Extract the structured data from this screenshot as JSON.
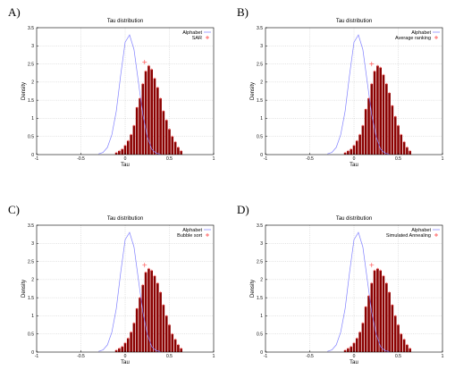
{
  "chart_data": [
    {
      "panel": "A)",
      "type": "bar",
      "title": "Tau distribution",
      "xlabel": "Tau",
      "ylabel": "Density",
      "xlim": [
        -1,
        1
      ],
      "ylim": [
        0,
        3.5
      ],
      "xticks": [
        "-1",
        "-0.5",
        "0",
        "0.5",
        "1"
      ],
      "yticks": [
        "0",
        "0.5",
        "1",
        "1.5",
        "2",
        "2.5",
        "3",
        "3.5"
      ],
      "grid": true,
      "legend_position": "top-right",
      "legend": [
        "Alphabet",
        "SAR"
      ],
      "colors": {
        "reference_line": "#8080ff",
        "bars": "#8b0000",
        "points": "#ff4040"
      },
      "reference_series": {
        "name": "Alphabet",
        "x": [
          -0.3,
          -0.25,
          -0.2,
          -0.15,
          -0.1,
          -0.05,
          0.0,
          0.05,
          0.1,
          0.15,
          0.2,
          0.25,
          0.3,
          0.35,
          0.4
        ],
        "y": [
          0.02,
          0.06,
          0.2,
          0.55,
          1.2,
          2.2,
          3.1,
          3.3,
          2.9,
          2.0,
          1.1,
          0.5,
          0.15,
          0.04,
          0.01
        ]
      },
      "bar_series": {
        "name": "SAR",
        "x": [
          -0.1,
          -0.067,
          -0.033,
          0.0,
          0.033,
          0.067,
          0.1,
          0.133,
          0.167,
          0.2,
          0.233,
          0.267,
          0.3,
          0.333,
          0.367,
          0.4,
          0.433,
          0.467,
          0.5,
          0.533,
          0.567,
          0.6,
          0.633
        ],
        "y": [
          0.05,
          0.1,
          0.15,
          0.25,
          0.38,
          0.55,
          0.8,
          1.3,
          1.55,
          1.95,
          2.3,
          2.45,
          2.35,
          2.1,
          1.85,
          1.55,
          1.2,
          0.95,
          0.7,
          0.5,
          0.35,
          0.2,
          0.1
        ]
      },
      "marker": {
        "x": 0.22,
        "y": 2.55
      }
    },
    {
      "panel": "B)",
      "type": "bar",
      "title": "Tau distribution",
      "xlabel": "Tau",
      "ylabel": "Density",
      "xlim": [
        -1,
        1
      ],
      "ylim": [
        0,
        3.5
      ],
      "xticks": [
        "-1",
        "-0.5",
        "0",
        "0.5",
        "1"
      ],
      "yticks": [
        "0",
        "0.5",
        "1",
        "1.5",
        "2",
        "2.5",
        "3",
        "3.5"
      ],
      "grid": true,
      "legend_position": "top-right",
      "legend": [
        "Alphabet",
        "Average ranking"
      ],
      "colors": {
        "reference_line": "#8080ff",
        "bars": "#8b0000",
        "points": "#ff4040"
      },
      "reference_series": {
        "name": "Alphabet",
        "x": [
          -0.3,
          -0.25,
          -0.2,
          -0.15,
          -0.1,
          -0.05,
          0.0,
          0.05,
          0.1,
          0.15,
          0.2,
          0.25,
          0.3,
          0.35,
          0.4
        ],
        "y": [
          0.02,
          0.06,
          0.2,
          0.55,
          1.2,
          2.2,
          3.1,
          3.3,
          2.9,
          2.0,
          1.1,
          0.5,
          0.15,
          0.04,
          0.01
        ]
      },
      "bar_series": {
        "name": "Average ranking",
        "x": [
          -0.1,
          -0.067,
          -0.033,
          0.0,
          0.033,
          0.067,
          0.1,
          0.133,
          0.167,
          0.2,
          0.233,
          0.267,
          0.3,
          0.333,
          0.367,
          0.4,
          0.433,
          0.467,
          0.5,
          0.533,
          0.567,
          0.6,
          0.633
        ],
        "y": [
          0.05,
          0.1,
          0.15,
          0.25,
          0.38,
          0.55,
          0.8,
          1.25,
          1.55,
          1.95,
          2.3,
          2.45,
          2.4,
          2.2,
          1.95,
          1.7,
          1.35,
          1.05,
          0.8,
          0.55,
          0.35,
          0.2,
          0.1
        ]
      },
      "marker": {
        "x": 0.2,
        "y": 2.5
      }
    },
    {
      "panel": "C)",
      "type": "bar",
      "title": "Tau distribution",
      "xlabel": "Tau",
      "ylabel": "Density",
      "xlim": [
        -1,
        1
      ],
      "ylim": [
        0,
        3.5
      ],
      "xticks": [
        "-1",
        "-0.5",
        "0",
        "0.5",
        "1"
      ],
      "yticks": [
        "0",
        "0.5",
        "1",
        "1.5",
        "2",
        "2.5",
        "3",
        "3.5"
      ],
      "grid": true,
      "legend_position": "top-right",
      "legend": [
        "Alphabet",
        "Bubble sort"
      ],
      "colors": {
        "reference_line": "#8080ff",
        "bars": "#8b0000",
        "points": "#ff4040"
      },
      "reference_series": {
        "name": "Alphabet",
        "x": [
          -0.3,
          -0.25,
          -0.2,
          -0.15,
          -0.1,
          -0.05,
          0.0,
          0.05,
          0.1,
          0.15,
          0.2,
          0.25,
          0.3,
          0.35,
          0.4
        ],
        "y": [
          0.02,
          0.06,
          0.2,
          0.55,
          1.2,
          2.2,
          3.1,
          3.3,
          2.9,
          2.0,
          1.1,
          0.5,
          0.15,
          0.04,
          0.01
        ]
      },
      "bar_series": {
        "name": "Bubble sort",
        "x": [
          -0.1,
          -0.067,
          -0.033,
          0.0,
          0.033,
          0.067,
          0.1,
          0.133,
          0.167,
          0.2,
          0.233,
          0.267,
          0.3,
          0.333,
          0.367,
          0.4,
          0.433,
          0.467,
          0.5,
          0.533,
          0.567,
          0.6,
          0.633
        ],
        "y": [
          0.05,
          0.1,
          0.15,
          0.25,
          0.38,
          0.55,
          0.8,
          1.2,
          1.5,
          1.85,
          2.2,
          2.3,
          2.25,
          2.1,
          1.9,
          1.65,
          1.3,
          1.0,
          0.75,
          0.5,
          0.35,
          0.2,
          0.1
        ]
      },
      "marker": {
        "x": 0.22,
        "y": 2.4
      }
    },
    {
      "panel": "D)",
      "type": "bar",
      "title": "Tau distribution",
      "xlabel": "Tau",
      "ylabel": "Density",
      "xlim": [
        -1,
        1
      ],
      "ylim": [
        0,
        3.5
      ],
      "xticks": [
        "-1",
        "-0.5",
        "0",
        "0.5",
        "1"
      ],
      "yticks": [
        "0",
        "0.5",
        "1",
        "1.5",
        "2",
        "2.5",
        "3",
        "3.5"
      ],
      "grid": true,
      "legend_position": "top-right",
      "legend": [
        "Alphabet",
        "Simulated Annealing"
      ],
      "colors": {
        "reference_line": "#8080ff",
        "bars": "#8b0000",
        "points": "#ff4040"
      },
      "reference_series": {
        "name": "Alphabet",
        "x": [
          -0.3,
          -0.25,
          -0.2,
          -0.15,
          -0.1,
          -0.05,
          0.0,
          0.05,
          0.1,
          0.15,
          0.2,
          0.25,
          0.3,
          0.35,
          0.4
        ],
        "y": [
          0.02,
          0.06,
          0.2,
          0.55,
          1.2,
          2.2,
          3.1,
          3.3,
          2.9,
          2.0,
          1.1,
          0.5,
          0.15,
          0.04,
          0.01
        ]
      },
      "bar_series": {
        "name": "Simulated Annealing",
        "x": [
          -0.1,
          -0.067,
          -0.033,
          0.0,
          0.033,
          0.067,
          0.1,
          0.133,
          0.167,
          0.2,
          0.233,
          0.267,
          0.3,
          0.333,
          0.367,
          0.4,
          0.433,
          0.467,
          0.5,
          0.533,
          0.567,
          0.6,
          0.633
        ],
        "y": [
          0.05,
          0.1,
          0.15,
          0.25,
          0.38,
          0.55,
          0.8,
          1.25,
          1.55,
          1.9,
          2.25,
          2.3,
          2.25,
          2.1,
          1.9,
          1.65,
          1.3,
          1.0,
          0.75,
          0.5,
          0.35,
          0.2,
          0.1
        ]
      },
      "marker": {
        "x": 0.2,
        "y": 2.4
      }
    }
  ]
}
